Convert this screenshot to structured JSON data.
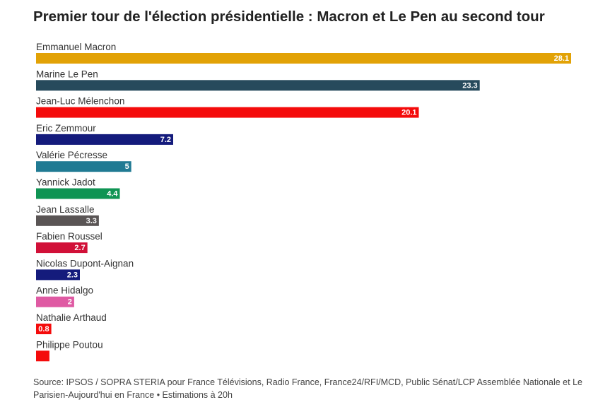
{
  "title": "Premier tour de l'élection présidentielle : Macron et Le Pen au second tour",
  "source": "Source: IPSOS / SOPRA STERIA pour France Télévisions, Radio France, France24/RFI/MCD, Public Sénat/LCP Assemblée Nationale et Le Parisien-Aujourd'hui en France • Estimations à 20h",
  "chart_data": {
    "type": "bar",
    "orientation": "horizontal",
    "title": "Premier tour de l'élection présidentielle : Macron et Le Pen au second tour",
    "categories": [
      "Emmanuel Macron",
      "Marine Le Pen",
      "Jean-Luc Mélenchon",
      "Eric Zemmour",
      "Valérie Pécresse",
      "Yannick Jadot",
      "Jean Lassalle",
      "Fabien Roussel",
      "Nicolas Dupont-Aignan",
      "Anne Hidalgo",
      "Nathalie Arthaud",
      "Philippe Poutou"
    ],
    "values": [
      28.1,
      23.3,
      20.1,
      7.2,
      5,
      4.4,
      3.3,
      2.7,
      2.3,
      2,
      0.8,
      0.7
    ],
    "value_labels": [
      "28.1",
      "23.3",
      "20.1",
      "7.2",
      "5",
      "4.4",
      "3.3",
      "2.7",
      "2.3",
      "2",
      "0.8",
      ""
    ],
    "colors": [
      "#e2a206",
      "#274a5c",
      "#f40b0b",
      "#141b7c",
      "#207a93",
      "#0f9453",
      "#5a5555",
      "#d11038",
      "#141b7c",
      "#df5aa3",
      "#f40b0b",
      "#f40b0b"
    ],
    "xlim": [
      0,
      28.1
    ],
    "grid": false,
    "legend": "none"
  }
}
